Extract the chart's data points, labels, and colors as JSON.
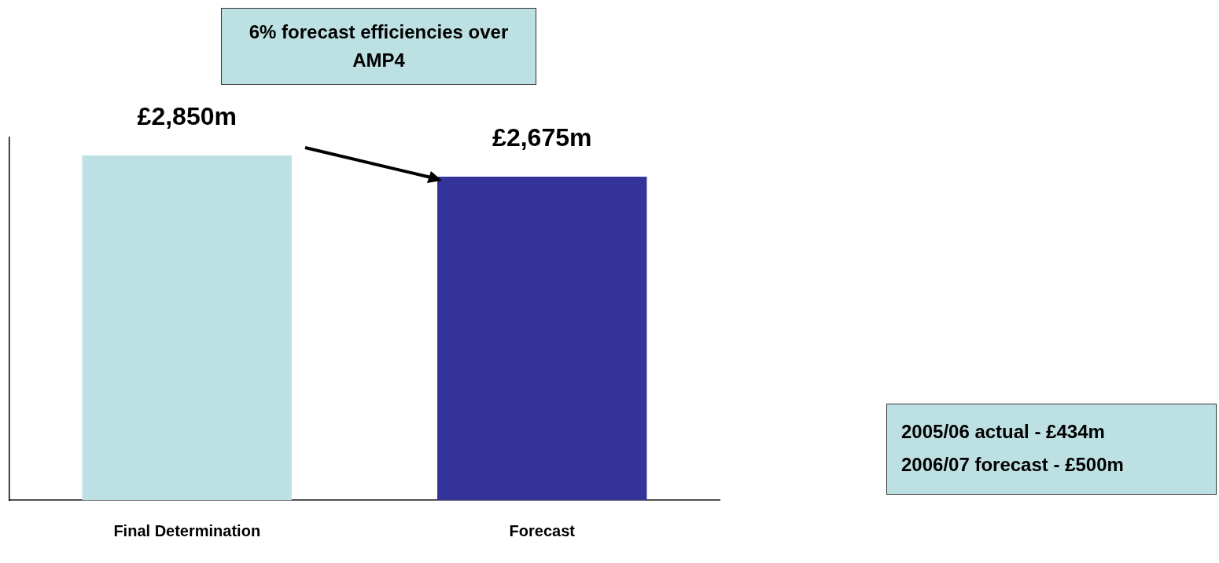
{
  "chart_data": {
    "type": "bar",
    "categories": [
      "Final Determination",
      "Forecast"
    ],
    "values": [
      2850,
      2675
    ],
    "colors": [
      "#bce0e3",
      "#333399"
    ],
    "value_labels": [
      "£2,850m",
      "£2,675m"
    ],
    "grid": false,
    "legend": false,
    "tick_labels": "x",
    "annotations": [
      "6% forecast efficiencies over AMP4",
      "2005/06 actual - £434m",
      "2006/07 forecast - £500m"
    ]
  }
}
